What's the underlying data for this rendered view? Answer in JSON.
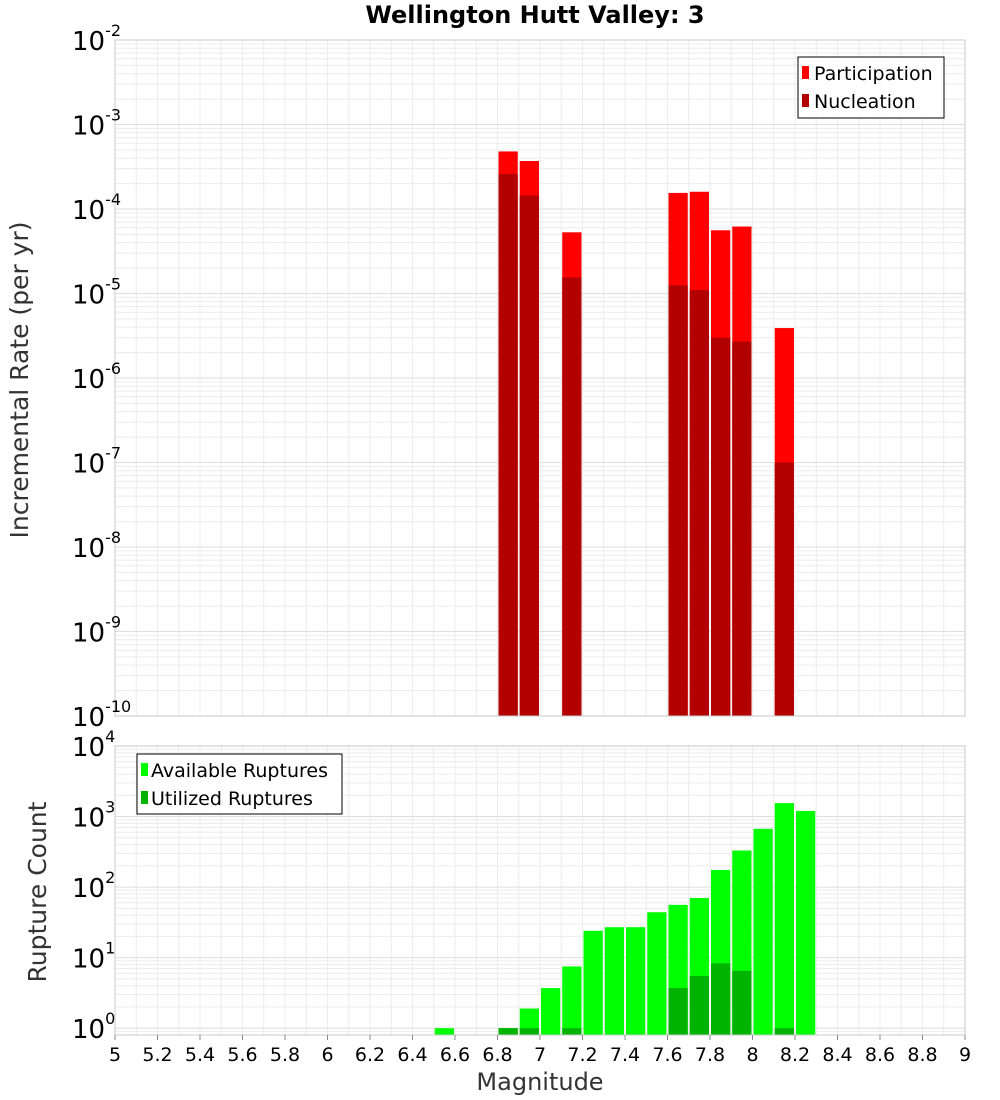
{
  "chart_data": [
    {
      "type": "bar",
      "title": "Wellington Hutt Valley: 3",
      "xlabel": "",
      "ylabel": "Incremental Rate (per yr)",
      "yscale": "log",
      "xlim": [
        5,
        9
      ],
      "ylim": [
        1e-10,
        0.01
      ],
      "bar_width": 0.1,
      "grid": true,
      "legend_position": "top-right",
      "y_ticks": [
        {
          "base": "10",
          "exp": "-10",
          "value": 1e-10
        },
        {
          "base": "10",
          "exp": "-9",
          "value": 1e-09
        },
        {
          "base": "10",
          "exp": "-8",
          "value": 1e-08
        },
        {
          "base": "10",
          "exp": "-7",
          "value": 1e-07
        },
        {
          "base": "10",
          "exp": "-6",
          "value": 1e-06
        },
        {
          "base": "10",
          "exp": "-5",
          "value": 1e-05
        },
        {
          "base": "10",
          "exp": "-4",
          "value": 0.0001
        },
        {
          "base": "10",
          "exp": "-3",
          "value": 0.001
        },
        {
          "base": "10",
          "exp": "-2",
          "value": 0.01
        }
      ],
      "series": [
        {
          "name": "Participation",
          "color": "#ff0000",
          "x": [
            6.85,
            6.95,
            7.15,
            7.65,
            7.75,
            7.85,
            7.95,
            8.15
          ],
          "values": [
            0.00048,
            0.00037,
            5.3e-05,
            0.000155,
            0.00016,
            5.6e-05,
            6.2e-05,
            3.9e-06
          ]
        },
        {
          "name": "Nucleation",
          "color": "#b30000",
          "x": [
            6.85,
            6.95,
            7.15,
            7.65,
            7.75,
            7.85,
            7.95,
            8.15
          ],
          "values": [
            0.00026,
            0.000145,
            1.55e-05,
            1.25e-05,
            1.1e-05,
            3e-06,
            2.7e-06,
            1e-07
          ]
        }
      ]
    },
    {
      "type": "bar",
      "title": "",
      "xlabel": "Magnitude",
      "ylabel": "Rupture Count",
      "yscale": "log",
      "xlim": [
        5,
        9
      ],
      "ylim": [
        0.8,
        10000
      ],
      "bar_width": 0.1,
      "grid": true,
      "legend_position": "top-left",
      "x_ticks": [
        "5",
        "5.2",
        "5.4",
        "5.6",
        "5.8",
        "6",
        "6.2",
        "6.4",
        "6.6",
        "6.8",
        "7",
        "7.2",
        "7.4",
        "7.6",
        "7.8",
        "8",
        "8.2",
        "8.4",
        "8.6",
        "8.8",
        "9"
      ],
      "y_ticks": [
        {
          "base": "10",
          "exp": "0",
          "value": 1
        },
        {
          "base": "10",
          "exp": "1",
          "value": 10
        },
        {
          "base": "10",
          "exp": "2",
          "value": 100
        },
        {
          "base": "10",
          "exp": "3",
          "value": 1000
        },
        {
          "base": "10",
          "exp": "4",
          "value": 10000
        }
      ],
      "series": [
        {
          "name": "Available Ruptures",
          "color": "#00ff00",
          "x": [
            6.55,
            6.85,
            6.95,
            7.05,
            7.15,
            7.25,
            7.35,
            7.45,
            7.55,
            7.65,
            7.75,
            7.85,
            7.95,
            8.05,
            8.15,
            8.25
          ],
          "values": [
            1,
            1,
            1.9,
            3.7,
            7.5,
            24,
            27,
            27,
            44,
            56,
            70,
            175,
            330,
            670,
            1550,
            1200
          ]
        },
        {
          "name": "Utilized Ruptures",
          "color": "#00b300",
          "x": [
            6.85,
            6.95,
            7.15,
            7.65,
            7.75,
            7.85,
            7.95,
            8.15
          ],
          "values": [
            1,
            1,
            1,
            3.7,
            5.5,
            8.3,
            6.5,
            1
          ]
        }
      ]
    }
  ]
}
